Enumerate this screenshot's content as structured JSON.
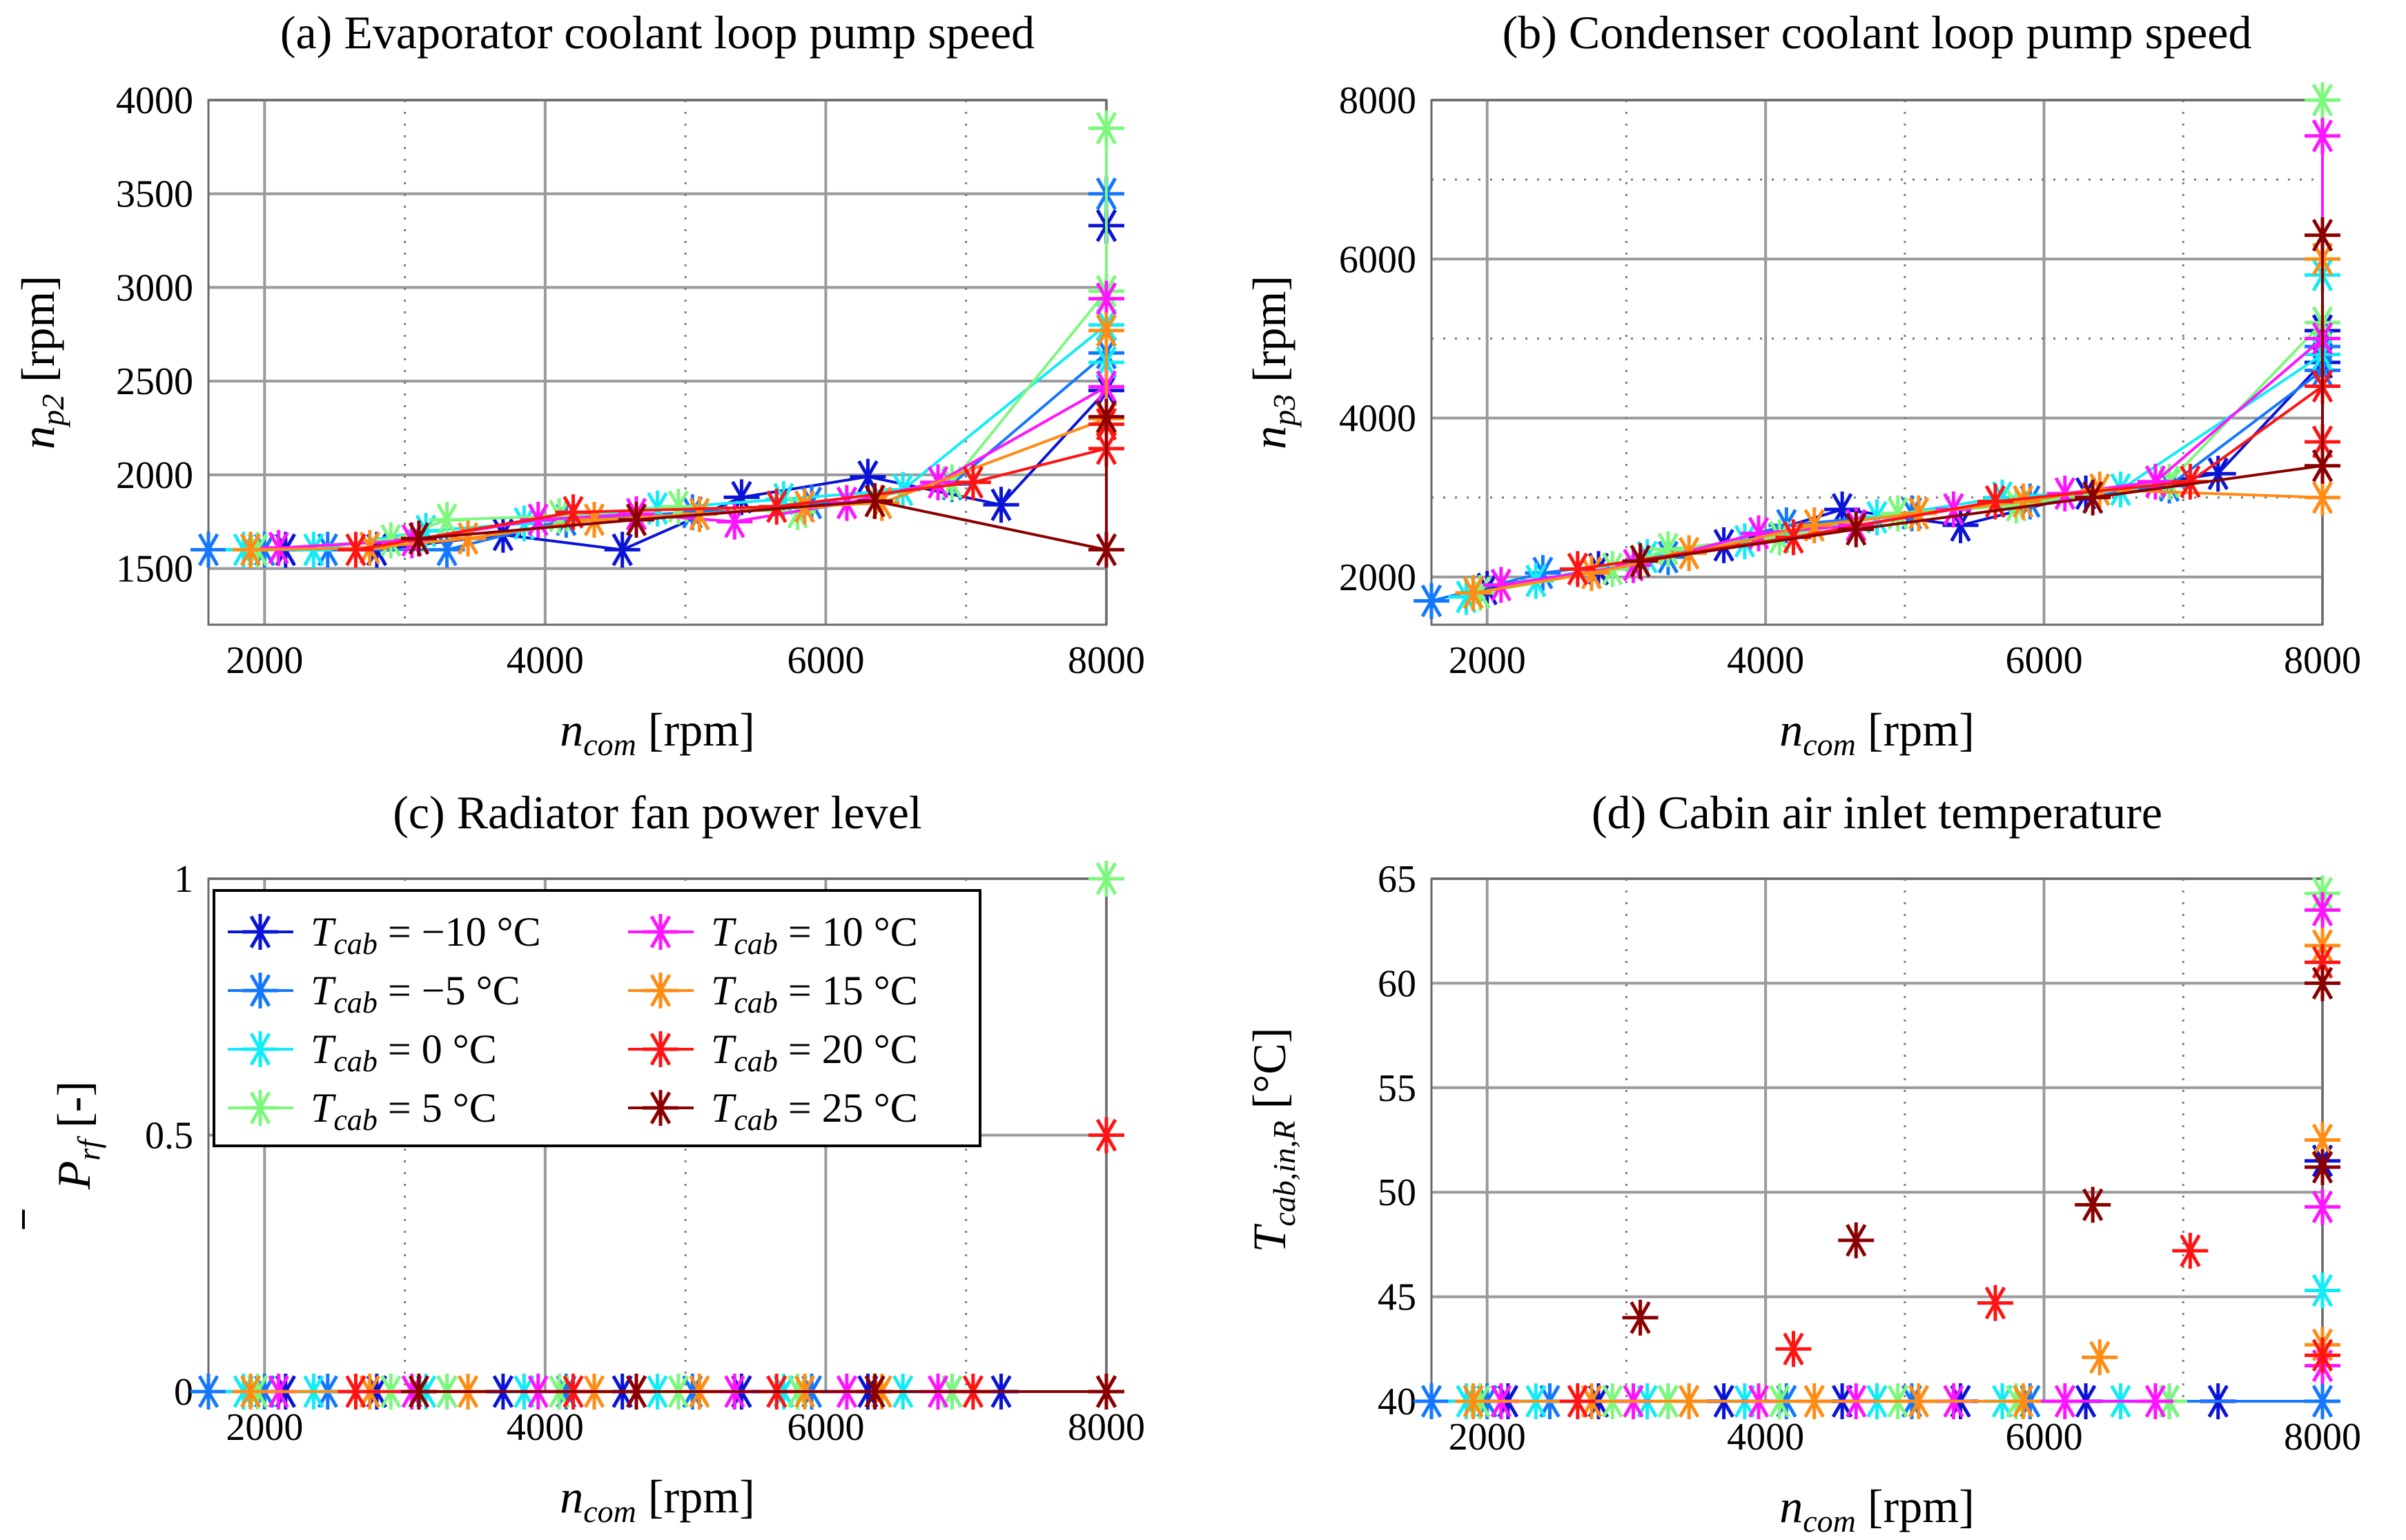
{
  "figure": {
    "label_x": "n",
    "label_x_sub": "com",
    "unit_rpm": "[rpm]"
  },
  "legend": [
    {
      "var": "T",
      "sub": "cab",
      "text": " = −10 °C",
      "color": "#0a14d6"
    },
    {
      "var": "T",
      "sub": "cab",
      "text": " = −5 °C",
      "color": "#1478ff"
    },
    {
      "var": "T",
      "sub": "cab",
      "text": " = 0 °C",
      "color": "#11ecf6"
    },
    {
      "var": "T",
      "sub": "cab",
      "text": " = 5 °C",
      "color": "#7cf87c"
    },
    {
      "var": "T",
      "sub": "cab",
      "text": " = 10 °C",
      "color": "#ff14ff"
    },
    {
      "var": "T",
      "sub": "cab",
      "text": " = 15 °C",
      "color": "#ff8c14"
    },
    {
      "var": "T",
      "sub": "cab",
      "text": " = 20 °C",
      "color": "#ff1414"
    },
    {
      "var": "T",
      "sub": "cab",
      "text": " = 25 °C",
      "color": "#8a0000"
    }
  ],
  "chart_data": [
    {
      "type": "line",
      "title": "(a) Evaporator coolant loop pump speed",
      "xlabel": "n_com [rpm]",
      "ylabel": "n_p2 [rpm]",
      "ylabel_var": "n",
      "ylabel_sub": "p2",
      "ylabel_unit": "[rpm]",
      "xlim": [
        1600,
        8000
      ],
      "ylim": [
        1200,
        4000
      ],
      "xticks": [
        2000,
        4000,
        6000,
        8000
      ],
      "yticks": [
        1500,
        2000,
        2500,
        3000,
        3500,
        4000
      ],
      "xtick_labels": [
        "2000",
        "4000",
        "6000",
        "8000"
      ],
      "ytick_labels": [
        "1500",
        "2000",
        "2500",
        "3000",
        "3500",
        "4000"
      ],
      "series": [
        {
          "name": "T_cab = −10 °C",
          "x": [
            2150,
            2800,
            3700,
            4550,
            5400,
            6300,
            7250,
            8000,
            8000
          ],
          "y": [
            1600,
            1600,
            1680,
            1600,
            1880,
            1990,
            1840,
            2450,
            3330
          ]
        },
        {
          "name": "T_cab = −5 °C",
          "x": [
            1600,
            2000,
            2450,
            3300,
            4150,
            5050,
            5900,
            6900,
            8000,
            8000
          ],
          "y": [
            1600,
            1600,
            1600,
            1600,
            1760,
            1800,
            1850,
            1950,
            2650,
            3500
          ]
        },
        {
          "name": "T_cab = 0 °C",
          "x": [
            1850,
            2350,
            3150,
            3850,
            4800,
            5700,
            6550,
            8000,
            8000
          ],
          "y": [
            1600,
            1600,
            1700,
            1740,
            1820,
            1870,
            1920,
            2800,
            2600
          ]
        },
        {
          "name": "T_cab = 5 °C",
          "x": [
            1950,
            2900,
            3300,
            4100,
            4950,
            5800,
            6900,
            8000,
            8000
          ],
          "y": [
            1600,
            1650,
            1760,
            1780,
            1830,
            1800,
            1960,
            2980,
            3850
          ]
        },
        {
          "name": "T_cab = 10 °C",
          "x": [
            2100,
            3050,
            3950,
            4650,
            5350,
            6150,
            6800,
            8000,
            8000
          ],
          "y": [
            1610,
            1650,
            1760,
            1790,
            1750,
            1850,
            1960,
            2470,
            2940
          ]
        },
        {
          "name": "T_cab = 15 °C",
          "x": [
            1900,
            2750,
            3450,
            4350,
            5100,
            5850,
            6400,
            8000,
            8000
          ],
          "y": [
            1600,
            1610,
            1660,
            1760,
            1790,
            1830,
            1850,
            2300,
            2770
          ]
        },
        {
          "name": "T_cab = 20 °C",
          "x": [
            2650,
            4200,
            5650,
            7050,
            8000,
            8000
          ],
          "y": [
            1600,
            1800,
            1830,
            1960,
            2140,
            2270
          ]
        },
        {
          "name": "T_cab = 25 °C",
          "x": [
            3100,
            4650,
            6350,
            8000,
            8000
          ],
          "y": [
            1660,
            1760,
            1860,
            1600,
            2310
          ]
        }
      ]
    },
    {
      "type": "line",
      "title": "(b) Condenser coolant loop pump speed",
      "xlabel": "n_com [rpm]",
      "ylabel": "n_p3 [rpm]",
      "ylabel_var": "n",
      "ylabel_sub": "p3",
      "ylabel_unit": "[rpm]",
      "xlim": [
        1600,
        8000
      ],
      "ylim": [
        1400,
        8000
      ],
      "xticks": [
        2000,
        4000,
        6000,
        8000
      ],
      "yticks": [
        2000,
        4000,
        6000,
        8000
      ],
      "xtick_labels": [
        "2000",
        "4000",
        "6000",
        "8000"
      ],
      "ytick_labels": [
        "2000",
        "4000",
        "6000",
        "8000"
      ],
      "series": [
        {
          "name": "T_cab = −10 °C",
          "x": [
            2000,
            2800,
            3700,
            4550,
            5400,
            6300,
            7250,
            8000,
            8000
          ],
          "y": [
            1850,
            2100,
            2400,
            2850,
            2650,
            3050,
            3300,
            4700,
            5100
          ]
        },
        {
          "name": "T_cab = −5 °C",
          "x": [
            1600,
            2400,
            3300,
            4150,
            5050,
            5900,
            6900,
            8000,
            8000
          ],
          "y": [
            1700,
            2050,
            2250,
            2650,
            2800,
            2950,
            3150,
            4600,
            4900
          ]
        },
        {
          "name": "T_cab = 0 °C",
          "x": [
            1850,
            2350,
            3150,
            3850,
            4800,
            5700,
            6550,
            8000,
            8000
          ],
          "y": [
            1750,
            1950,
            2250,
            2450,
            2750,
            3000,
            3100,
            4800,
            5800
          ]
        },
        {
          "name": "T_cab = 5 °C",
          "x": [
            1950,
            2900,
            3300,
            4100,
            4950,
            5800,
            6900,
            8000,
            8000
          ],
          "y": [
            1800,
            2100,
            2350,
            2500,
            2800,
            2900,
            3200,
            5200,
            8000
          ]
        },
        {
          "name": "T_cab = 10 °C",
          "x": [
            2100,
            3050,
            3950,
            4650,
            5350,
            6150,
            6800,
            8000,
            8000
          ],
          "y": [
            1900,
            2150,
            2550,
            2650,
            2850,
            3050,
            3200,
            5000,
            7550
          ]
        },
        {
          "name": "T_cab = 15 °C",
          "x": [
            1900,
            2750,
            3450,
            4350,
            5100,
            5850,
            6400,
            8000,
            8000
          ],
          "y": [
            1800,
            2050,
            2300,
            2650,
            2800,
            2950,
            3100,
            3000,
            6000
          ]
        },
        {
          "name": "T_cab = 20 °C",
          "x": [
            2650,
            4200,
            5650,
            7050,
            8000,
            8000
          ],
          "y": [
            2100,
            2500,
            2950,
            3200,
            4400,
            3700
          ]
        },
        {
          "name": "T_cab = 25 °C",
          "x": [
            3100,
            4650,
            6350,
            8000,
            8000
          ],
          "y": [
            2200,
            2600,
            3000,
            3400,
            6300
          ]
        }
      ]
    },
    {
      "type": "scatter",
      "title": "(c) Radiator fan power level",
      "xlabel": "n_com [rpm]",
      "ylabel": "P̄_rf [-]",
      "ylabel_var": "P",
      "ylabel_sub": "rf",
      "ylabel_unit": "[-]",
      "xlim": [
        1600,
        8000
      ],
      "ylim": [
        0,
        1
      ],
      "xticks": [
        2000,
        4000,
        6000,
        8000
      ],
      "yticks": [
        0,
        0.5,
        1
      ],
      "xtick_labels": [
        "2000",
        "4000",
        "6000",
        "8000"
      ],
      "ytick_labels": [
        "0",
        "0.5",
        "1"
      ],
      "series": [
        {
          "name": "T_cab = −10 °C",
          "x": [
            2150,
            2800,
            3700,
            4550,
            5400,
            6300,
            7250,
            8000
          ],
          "y": [
            0,
            0,
            0,
            0,
            0,
            0,
            0,
            0
          ]
        },
        {
          "name": "T_cab = −5 °C",
          "x": [
            1600,
            2000,
            2450,
            3300,
            4150,
            5050,
            5900,
            6900,
            8000
          ],
          "y": [
            0,
            0,
            0,
            0,
            0,
            0,
            0,
            0,
            0
          ]
        },
        {
          "name": "T_cab = 0 °C",
          "x": [
            1850,
            2350,
            3150,
            3850,
            4800,
            5700,
            6550,
            8000
          ],
          "y": [
            0,
            0,
            0,
            0,
            0,
            0,
            0,
            0
          ]
        },
        {
          "name": "T_cab = 5 °C",
          "x": [
            1950,
            2900,
            3300,
            4100,
            4950,
            5800,
            6900,
            8000
          ],
          "y": [
            0,
            0,
            0,
            0,
            0,
            0,
            0,
            1
          ]
        },
        {
          "name": "T_cab = 10 °C",
          "x": [
            2100,
            3050,
            3950,
            4650,
            5350,
            6150,
            6800,
            8000
          ],
          "y": [
            0,
            0,
            0,
            0,
            0,
            0,
            0,
            0
          ]
        },
        {
          "name": "T_cab = 15 °C",
          "x": [
            1900,
            2750,
            3450,
            4350,
            5100,
            5850,
            6400,
            8000
          ],
          "y": [
            0,
            0,
            0,
            0,
            0,
            0,
            0,
            0
          ]
        },
        {
          "name": "T_cab = 20 °C",
          "x": [
            2650,
            4200,
            5650,
            7050,
            8000
          ],
          "y": [
            0,
            0,
            0,
            0,
            0.5
          ]
        },
        {
          "name": "T_cab = 25 °C",
          "x": [
            3100,
            4650,
            6350,
            8000
          ],
          "y": [
            0,
            0,
            0,
            0
          ]
        }
      ]
    },
    {
      "type": "scatter",
      "title": "(d) Cabin air inlet temperature",
      "xlabel": "n_com [rpm]",
      "ylabel": "T_cab,in,R [°C]",
      "ylabel_var": "T",
      "ylabel_sub": "cab,in,R",
      "ylabel_unit": "[°C]",
      "xlim": [
        1600,
        8000
      ],
      "ylim": [
        40,
        65
      ],
      "xticks": [
        2000,
        4000,
        6000,
        8000
      ],
      "yticks": [
        40,
        45,
        50,
        55,
        60,
        65
      ],
      "xtick_labels": [
        "2000",
        "4000",
        "6000",
        "8000"
      ],
      "ytick_labels": [
        "40",
        "45",
        "50",
        "55",
        "60",
        "65"
      ],
      "series": [
        {
          "name": "T_cab = −10 °C",
          "x": [
            2150,
            2800,
            3700,
            4550,
            5400,
            6300,
            7250,
            8000
          ],
          "y": [
            40,
            40,
            40,
            40,
            40,
            40,
            40,
            51.5
          ]
        },
        {
          "name": "T_cab = −5 °C",
          "x": [
            1600,
            2000,
            2450,
            3300,
            4150,
            5050,
            5900,
            6900,
            8000
          ],
          "y": [
            40,
            40,
            40,
            40,
            40,
            40,
            40,
            40,
            40
          ]
        },
        {
          "name": "T_cab = 0 °C",
          "x": [
            1850,
            2350,
            3150,
            3850,
            4800,
            5700,
            6550,
            8000
          ],
          "y": [
            40,
            40,
            40,
            40,
            40,
            40,
            40,
            45.3
          ]
        },
        {
          "name": "T_cab = 5 °C",
          "x": [
            1950,
            2900,
            3300,
            4100,
            4950,
            5800,
            6900,
            8000
          ],
          "y": [
            40,
            40,
            40,
            40,
            40,
            40,
            40,
            64.3
          ]
        },
        {
          "name": "T_cab = 10 °C",
          "x": [
            2100,
            3050,
            3950,
            4650,
            5350,
            6150,
            6800,
            8000,
            8000,
            8000
          ],
          "y": [
            40,
            40,
            40,
            40,
            40,
            40,
            40,
            63.5,
            49.3,
            41.7
          ]
        },
        {
          "name": "T_cab = 15 °C",
          "x": [
            1900,
            2750,
            3450,
            4350,
            5100,
            5850,
            6400,
            8000,
            8000,
            8000
          ],
          "y": [
            40,
            40,
            40,
            40,
            40,
            40,
            42.1,
            61.8,
            52.5,
            42.7
          ]
        },
        {
          "name": "T_cab = 20 °C",
          "x": [
            2650,
            4200,
            5650,
            7050,
            8000,
            8000
          ],
          "y": [
            40,
            42.5,
            44.7,
            47.2,
            61.0,
            42.2
          ]
        },
        {
          "name": "T_cab = 25 °C",
          "x": [
            3100,
            4650,
            6350,
            8000,
            8000
          ],
          "y": [
            44.0,
            47.7,
            49.4,
            60.0,
            51.2
          ]
        }
      ]
    }
  ]
}
